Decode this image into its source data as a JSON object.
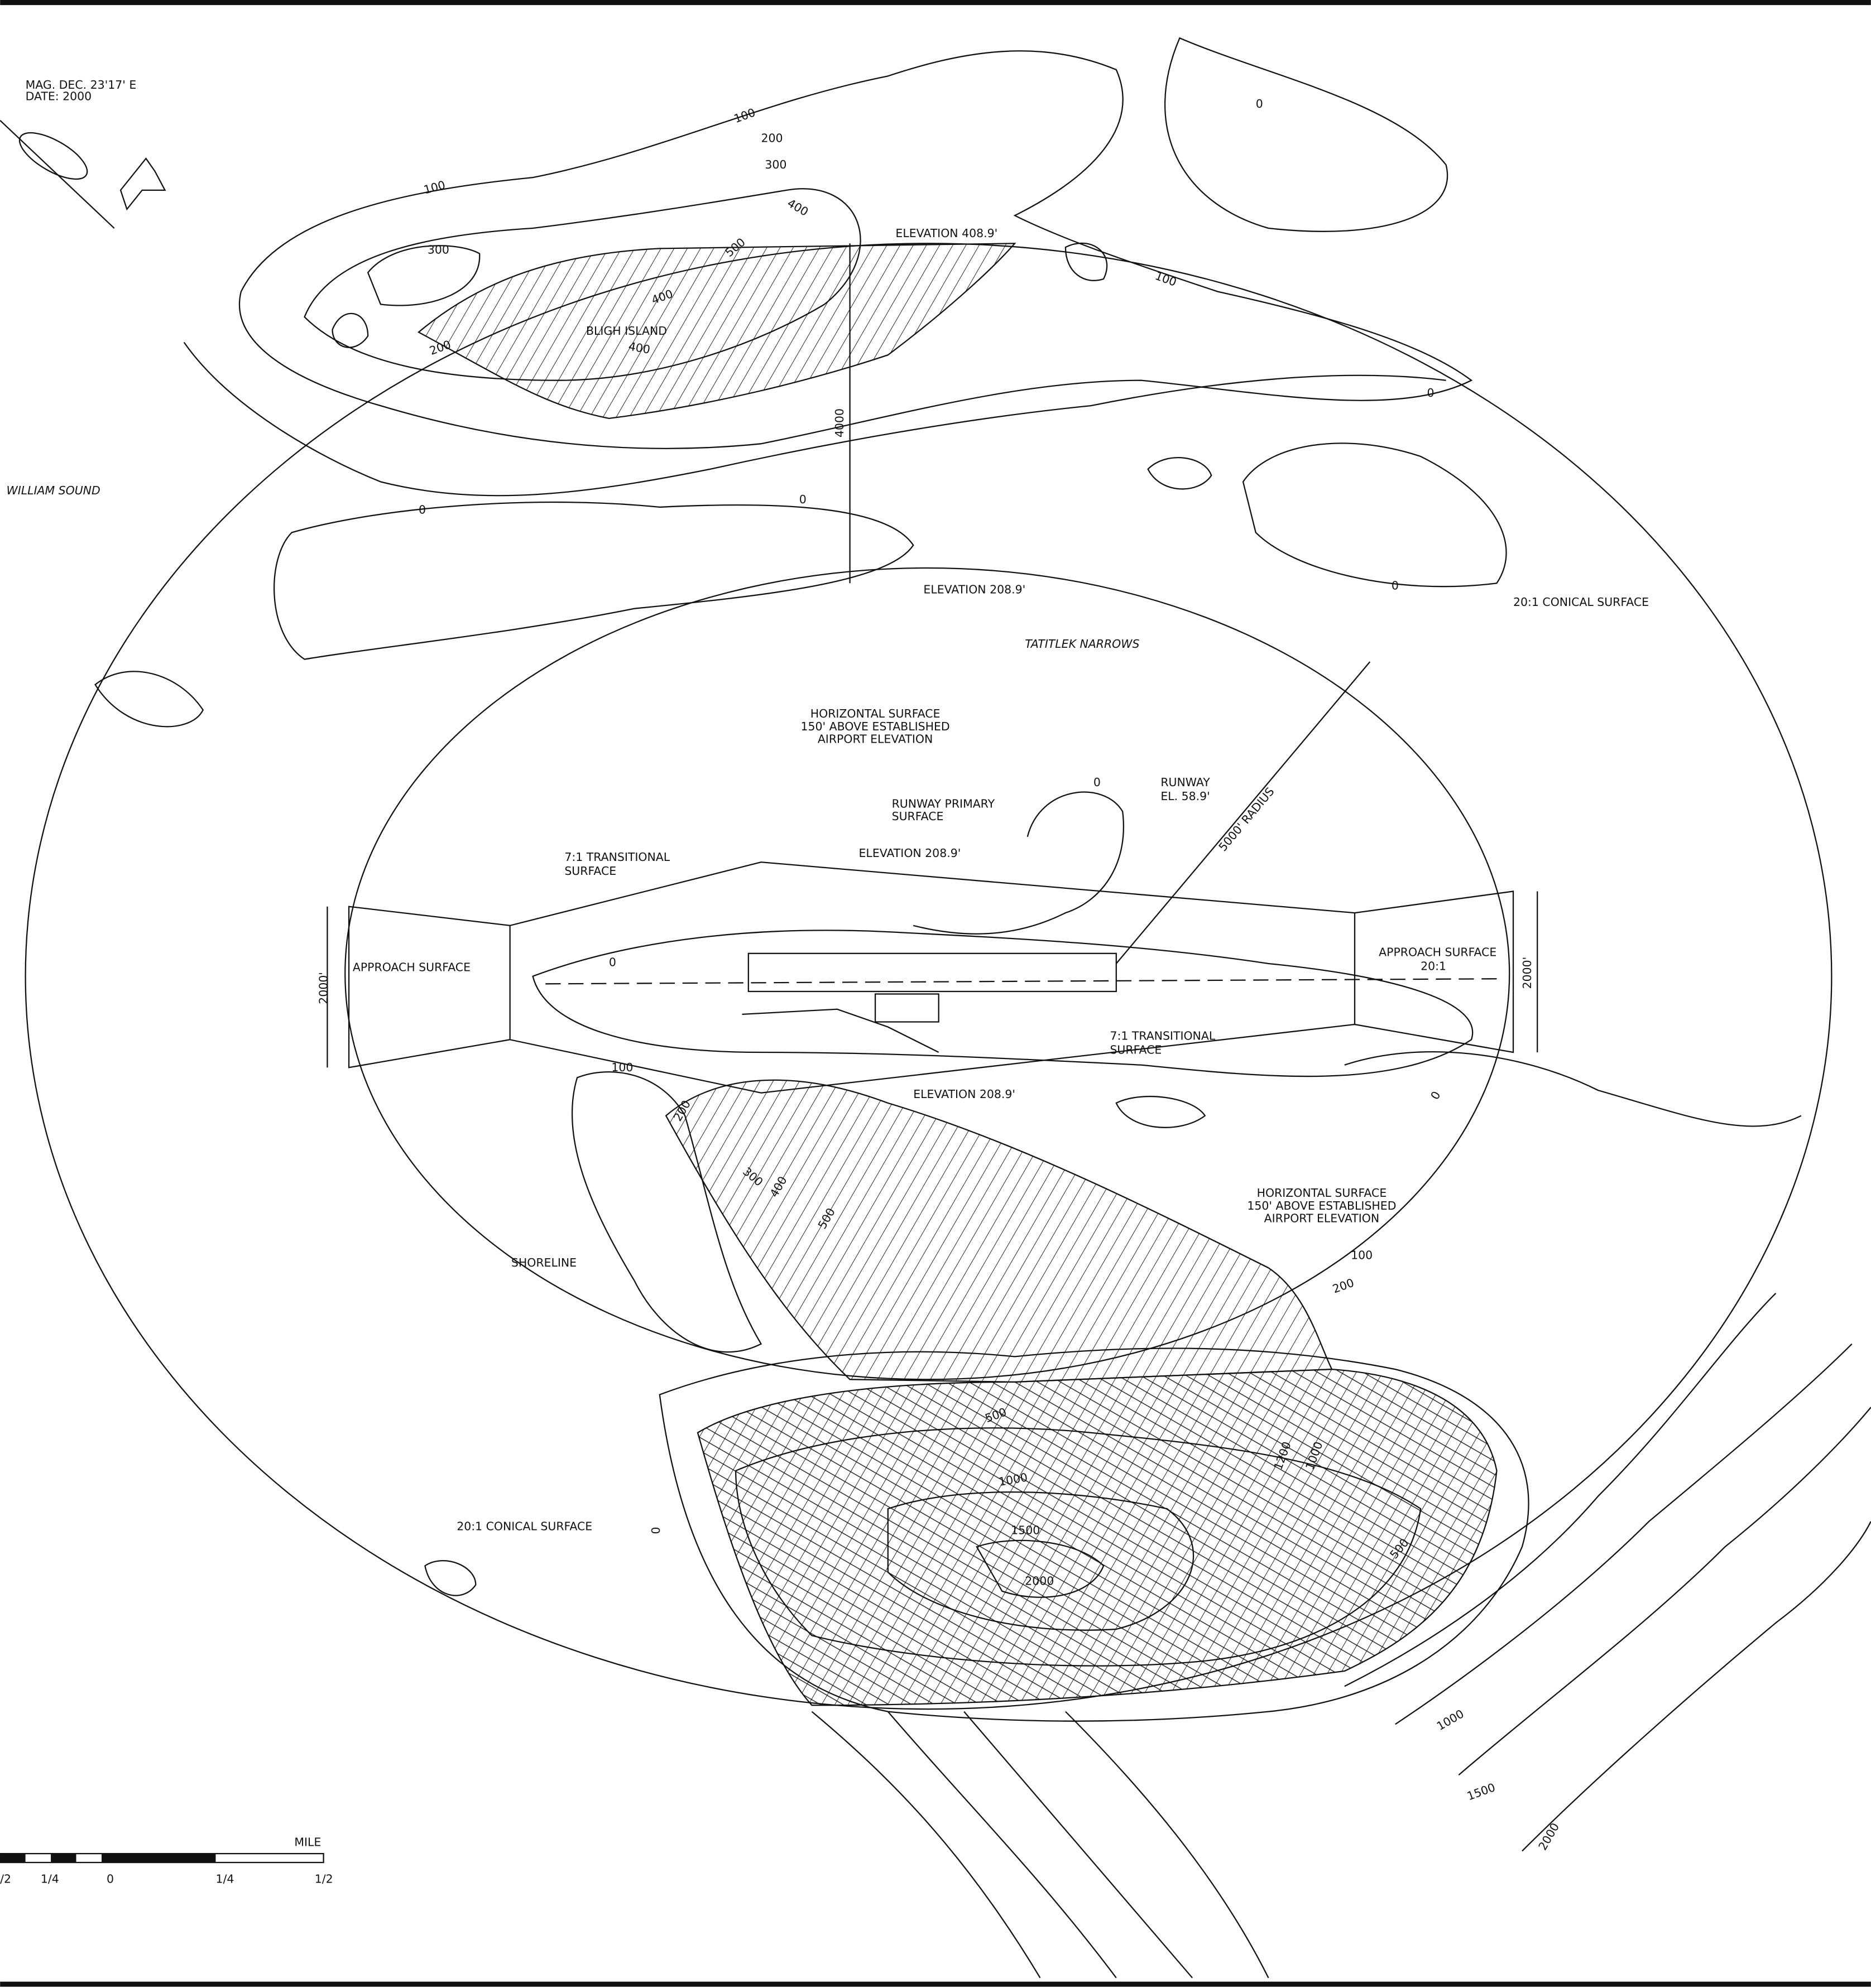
{
  "labels": [
    "MAG. DEC. 23'17' E",
    "DATE: 2000",
    "WILLIAM SOUND",
    "BLIGH ISLAND",
    "TATITLEK NARROWS",
    "ELEVATION 408.9'",
    "ELEVATION 208.9'",
    "20:1 CONICAL SURFACE",
    "HORIZONTAL SURFACE",
    "150' ABOVE ESTABLISHED",
    "AIRPORT ELEVATION",
    "RUNWAY",
    "EL. 58.9'",
    "5000' RADIUS",
    "RUNWAY PRIMARY",
    "SURFACE",
    "7:1 TRANSITIONAL",
    "SURFACE",
    "ELEVATION 208.9'",
    "APPROACH SURFACE",
    "APPROACH SURFACE",
    "20:1",
    "2000'",
    "2000'",
    "7:1 TRANSITIONAL",
    "SURFACE",
    "ELEVATION 208.9'",
    "HORIZONTAL SURFACE",
    "150' ABOVE ESTABLISHED",
    "AIRPORT ELEVATION",
    "SHORELINE",
    "20:1 CONICAL SURFACE",
    "4000",
    "MILE",
    "/2",
    "1/4",
    "0",
    "1/4",
    "1/2"
  ],
  "contour_labels": [
    "100",
    "200",
    "300",
    "400",
    "100",
    "300",
    "500",
    "400",
    "400",
    "200",
    "0",
    "100",
    "0",
    "0",
    "0",
    "0",
    "0",
    "0",
    "100",
    "0",
    "200",
    "300",
    "400",
    "500",
    "100",
    "200",
    "500",
    "1000",
    "1500",
    "2000",
    "1200",
    "1000",
    "500",
    "0",
    "1000",
    "1500",
    "2000"
  ]
}
